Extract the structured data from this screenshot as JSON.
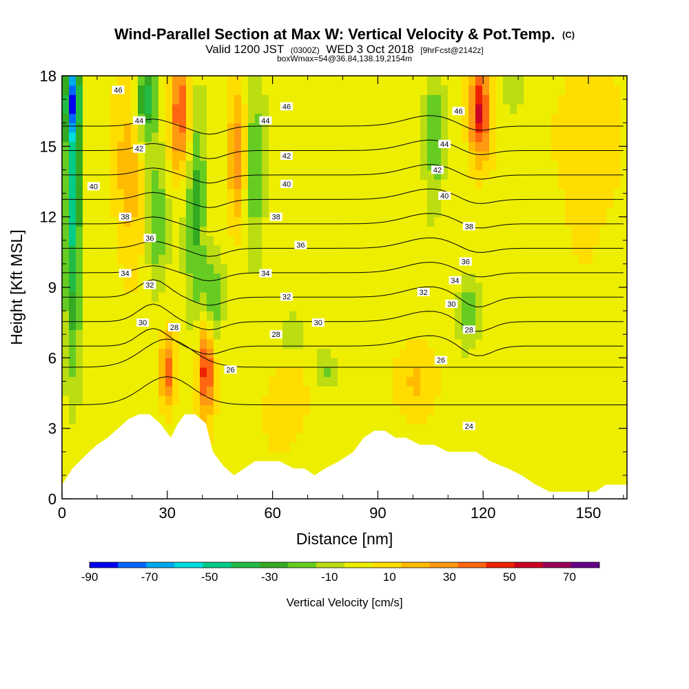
{
  "chart_data": {
    "type": "heatmap",
    "title": "Wind-Parallel Section at Max W: Vertical Velocity & Pot.Temp.",
    "title_mark": "(C)",
    "subtitle": {
      "valid_prefix": "Valid 1200 JST",
      "utc": "(0300Z)",
      "date": "WED 3 Oct 2018",
      "fcst": "[9hrFcst@2142z]",
      "box": "boxWmax=54@36.84,138.19,2154m"
    },
    "xlabel": "Distance [nm]",
    "ylabel": "Height [Kft MSL]",
    "xlim": [
      0,
      161
    ],
    "ylim": [
      0,
      18
    ],
    "xticks": [
      "0",
      "30",
      "60",
      "90",
      "120",
      "150"
    ],
    "xtick_values": [
      0,
      30,
      60,
      90,
      120,
      150
    ],
    "yticks": [
      "0",
      "3",
      "6",
      "9",
      "12",
      "15",
      "18"
    ],
    "ytick_values": [
      0,
      3,
      6,
      9,
      12,
      15,
      18
    ],
    "colorbar": {
      "label": "Vertical Velocity [cm/s]",
      "tick_labels": [
        "-90",
        "-70",
        "-50",
        "-30",
        "-10",
        "10",
        "30",
        "50",
        "70"
      ],
      "bounds": [
        -90,
        -80,
        -70,
        -60,
        -50,
        -40,
        -30,
        -20,
        -10,
        0,
        10,
        20,
        30,
        40,
        50,
        60,
        70,
        80
      ],
      "colors": [
        "#0000ee",
        "#0066ff",
        "#00a8ee",
        "#00dddd",
        "#00cc88",
        "#22bb44",
        "#33aa22",
        "#66cc22",
        "#bbdd11",
        "#eeee00",
        "#ffdd00",
        "#ffbb00",
        "#ff9911",
        "#ff6611",
        "#ee2200",
        "#cc0022",
        "#990055",
        "#660088"
      ]
    },
    "terrain": [
      [
        0,
        0.6
      ],
      [
        3,
        1.3
      ],
      [
        7,
        1.9
      ],
      [
        10,
        2.3
      ],
      [
        13,
        2.6
      ],
      [
        16,
        3.0
      ],
      [
        19,
        3.4
      ],
      [
        22,
        3.6
      ],
      [
        25,
        3.6
      ],
      [
        28,
        3.2
      ],
      [
        31,
        2.6
      ],
      [
        33,
        3.2
      ],
      [
        35,
        3.6
      ],
      [
        38,
        3.6
      ],
      [
        41,
        3.2
      ],
      [
        43,
        2.0
      ],
      [
        46,
        1.4
      ],
      [
        49,
        1.0
      ],
      [
        52,
        1.3
      ],
      [
        55,
        1.6
      ],
      [
        58,
        1.6
      ],
      [
        62,
        1.6
      ],
      [
        66,
        1.3
      ],
      [
        69,
        1.3
      ],
      [
        72,
        1.0
      ],
      [
        75,
        1.3
      ],
      [
        79,
        1.6
      ],
      [
        83,
        2.0
      ],
      [
        86,
        2.6
      ],
      [
        89,
        2.9
      ],
      [
        92,
        2.9
      ],
      [
        95,
        2.6
      ],
      [
        98,
        2.6
      ],
      [
        102,
        2.3
      ],
      [
        106,
        2.3
      ],
      [
        110,
        2.0
      ],
      [
        114,
        2.0
      ],
      [
        118,
        2.0
      ],
      [
        122,
        1.6
      ],
      [
        127,
        1.3
      ],
      [
        131,
        1.0
      ],
      [
        135,
        0.6
      ],
      [
        139,
        0.3
      ],
      [
        143,
        0.3
      ],
      [
        148,
        0.3
      ],
      [
        152,
        0.3
      ],
      [
        155,
        0.6
      ],
      [
        161,
        0.6
      ]
    ],
    "w_features": [
      {
        "x": 3,
        "z": 12,
        "rx": 2.5,
        "rz": 6,
        "w": -50
      },
      {
        "x": 3,
        "z": 17,
        "rx": 2,
        "rz": 1.5,
        "w": -65
      },
      {
        "x": 24,
        "z": 17,
        "rx": 3,
        "rz": 1.5,
        "w": -45
      },
      {
        "x": 27,
        "z": 12,
        "rx": 3,
        "rz": 3,
        "w": -25
      },
      {
        "x": 38,
        "z": 12.5,
        "rx": 3,
        "rz": 5,
        "w": -30
      },
      {
        "x": 43,
        "z": 8.5,
        "rx": 3,
        "rz": 2,
        "w": -25
      },
      {
        "x": 55,
        "z": 14,
        "rx": 3,
        "rz": 4,
        "w": -25
      },
      {
        "x": 66,
        "z": 7,
        "rx": 3.5,
        "rz": 1,
        "w": -15
      },
      {
        "x": 75,
        "z": 5.5,
        "rx": 3,
        "rz": 0.8,
        "w": -15
      },
      {
        "x": 106,
        "z": 15.5,
        "rx": 3,
        "rz": 3,
        "w": -25
      },
      {
        "x": 116,
        "z": 8,
        "rx": 3,
        "rz": 1.5,
        "w": -25
      },
      {
        "x": 128,
        "z": 17.5,
        "rx": 3,
        "rz": 1,
        "w": -15
      },
      {
        "x": 34,
        "z": 16.5,
        "rx": 3,
        "rz": 2.5,
        "w": 45
      },
      {
        "x": 30,
        "z": 5.5,
        "rx": 2,
        "rz": 1.5,
        "w": 40
      },
      {
        "x": 41,
        "z": 5.5,
        "rx": 2.5,
        "rz": 2,
        "w": 55
      },
      {
        "x": 50,
        "z": 14.5,
        "rx": 2.5,
        "rz": 3,
        "w": 30
      },
      {
        "x": 119,
        "z": 16.5,
        "rx": 3,
        "rz": 2,
        "w": 55
      },
      {
        "x": 19,
        "z": 14,
        "rx": 4,
        "rz": 4,
        "w": 20
      },
      {
        "x": 100,
        "z": 5,
        "rx": 6,
        "rz": 1.5,
        "w": 15
      },
      {
        "x": 63,
        "z": 4,
        "rx": 6,
        "rz": 2,
        "w": 12
      },
      {
        "x": 150,
        "z": 15,
        "rx": 8,
        "rz": 4,
        "w": 12
      }
    ],
    "theta_levels": [
      24,
      26,
      28,
      30,
      32,
      34,
      36,
      38,
      40,
      42,
      44,
      46
    ],
    "contour_labels": [
      {
        "text": "46",
        "x": 16,
        "z": 17.4
      },
      {
        "text": "44",
        "x": 22,
        "z": 16.1
      },
      {
        "text": "42",
        "x": 22,
        "z": 14.9
      },
      {
        "text": "40",
        "x": 9,
        "z": 13.3
      },
      {
        "text": "38",
        "x": 18,
        "z": 12.0
      },
      {
        "text": "36",
        "x": 25,
        "z": 11.1
      },
      {
        "text": "34",
        "x": 18,
        "z": 9.6
      },
      {
        "text": "32",
        "x": 25,
        "z": 9.1
      },
      {
        "text": "30",
        "x": 23,
        "z": 7.5
      },
      {
        "text": "28",
        "x": 32,
        "z": 7.3
      },
      {
        "text": "26",
        "x": 48,
        "z": 5.5
      },
      {
        "text": "46",
        "x": 64,
        "z": 16.7
      },
      {
        "text": "44",
        "x": 58,
        "z": 16.1
      },
      {
        "text": "42",
        "x": 64,
        "z": 14.6
      },
      {
        "text": "40",
        "x": 64,
        "z": 13.4
      },
      {
        "text": "38",
        "x": 61,
        "z": 12.0
      },
      {
        "text": "36",
        "x": 68,
        "z": 10.8
      },
      {
        "text": "34",
        "x": 58,
        "z": 9.6
      },
      {
        "text": "32",
        "x": 64,
        "z": 8.6
      },
      {
        "text": "30",
        "x": 73,
        "z": 7.5
      },
      {
        "text": "28",
        "x": 61,
        "z": 7.0
      },
      {
        "text": "32",
        "x": 103,
        "z": 8.8
      },
      {
        "text": "30",
        "x": 111,
        "z": 8.3
      },
      {
        "text": "34",
        "x": 112,
        "z": 9.3
      },
      {
        "text": "28",
        "x": 116,
        "z": 7.2
      },
      {
        "text": "46",
        "x": 113,
        "z": 16.5
      },
      {
        "text": "44",
        "x": 109,
        "z": 15.1
      },
      {
        "text": "42",
        "x": 107,
        "z": 14.0
      },
      {
        "text": "40",
        "x": 109,
        "z": 12.9
      },
      {
        "text": "38",
        "x": 116,
        "z": 11.6
      },
      {
        "text": "36",
        "x": 115,
        "z": 10.1
      },
      {
        "text": "26",
        "x": 108,
        "z": 5.9
      },
      {
        "text": "24",
        "x": 116,
        "z": 3.1
      }
    ]
  }
}
